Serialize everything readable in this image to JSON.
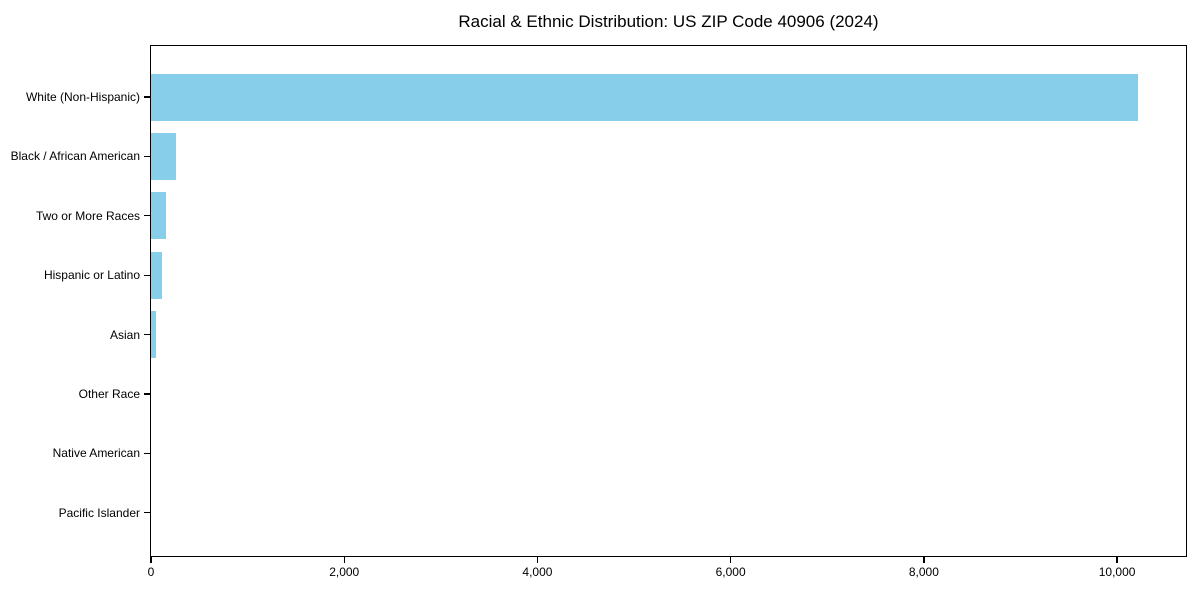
{
  "chart_data": {
    "type": "bar",
    "orientation": "horizontal",
    "title": "Racial & Ethnic Distribution: US ZIP Code 40906 (2024)",
    "categories": [
      "White (Non-Hispanic)",
      "Black / African American",
      "Two or More Races",
      "Hispanic or Latino",
      "Asian",
      "Other Race",
      "Native American",
      "Pacific Islander"
    ],
    "values": [
      10220,
      255,
      150,
      115,
      50,
      0,
      0,
      0
    ],
    "xlabel": "",
    "ylabel": "",
    "xlim": [
      0,
      10734
    ],
    "xticks": [
      0,
      2000,
      4000,
      6000,
      8000,
      10000
    ],
    "xtick_labels": [
      "0",
      "2,000",
      "4,000",
      "6,000",
      "8,000",
      "10,000"
    ],
    "bar_color": "#87CEEB",
    "spine_color": "#000000",
    "background_color": "#ffffff",
    "grid": false,
    "legend": null
  }
}
